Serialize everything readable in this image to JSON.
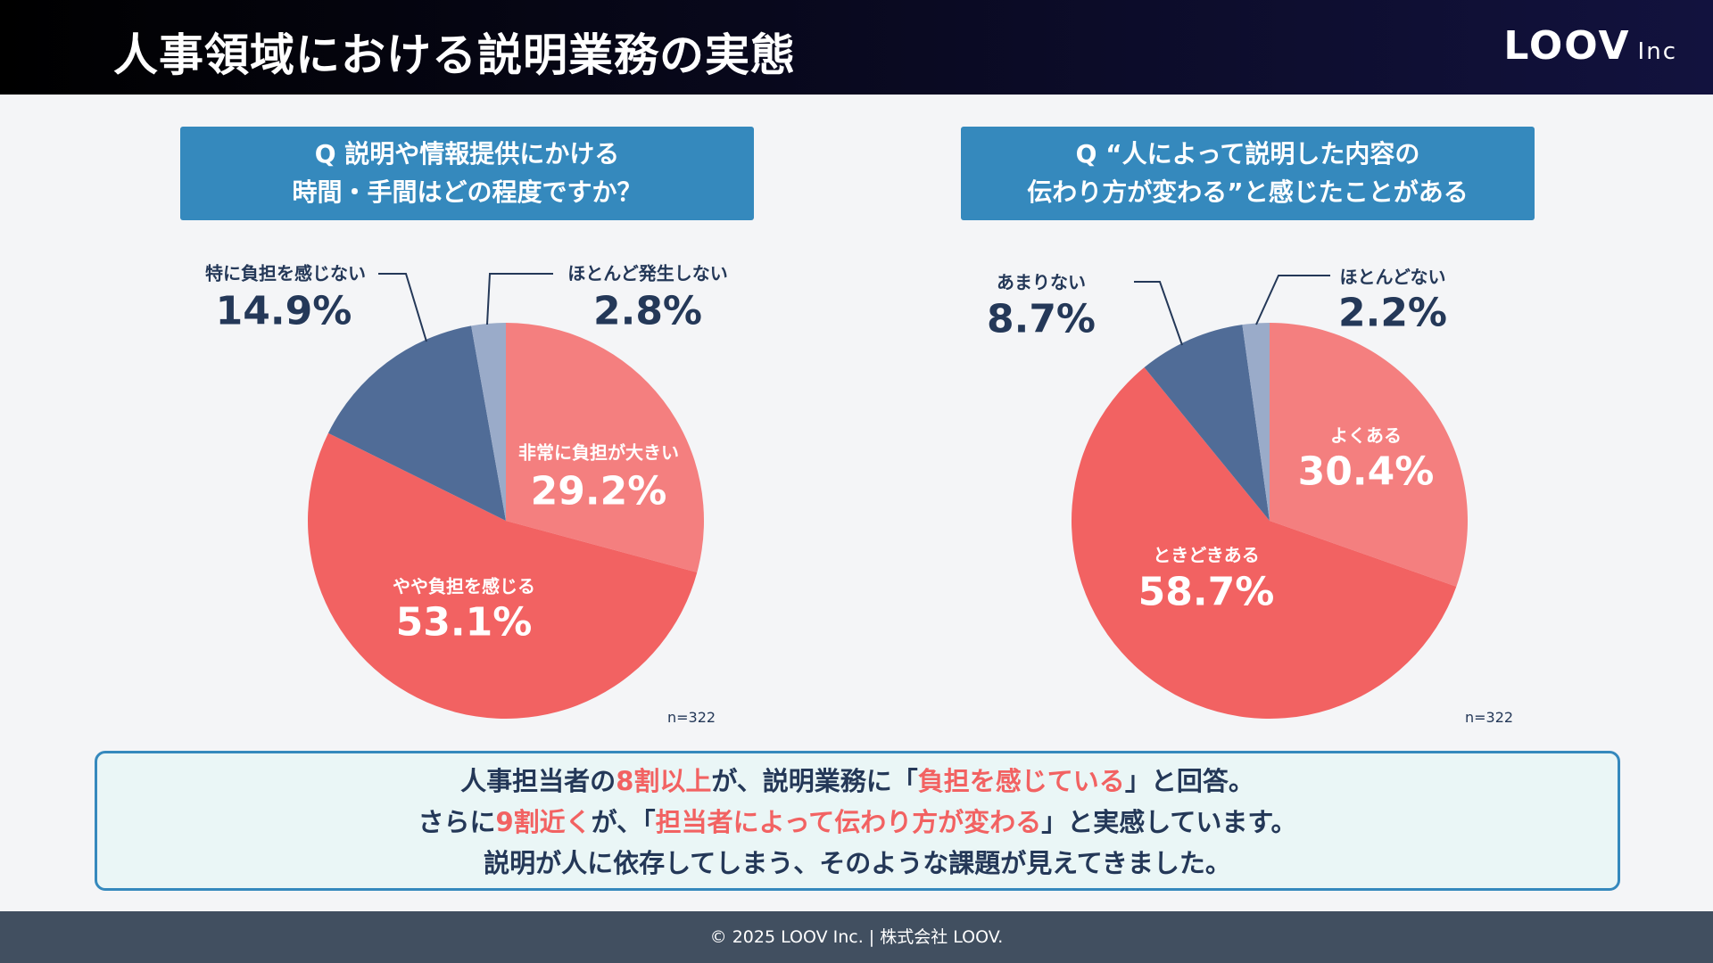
{
  "header": {
    "title": "人事領域における説明業務の実態",
    "logo_main": "LOOV",
    "logo_sub": "Inc"
  },
  "colors": {
    "header": "#0b0b26",
    "question_box": "#3589bd",
    "strong_burden": "#f47f7f",
    "some_burden": "#f26262",
    "no_burden": "#506c97",
    "rare": "#9aabc9",
    "highlight": "#f26262",
    "footer": "#414f60"
  },
  "chart_data": [
    {
      "type": "pie",
      "title_lines": [
        "Q 説明や情報提供にかける",
        "時間・手間はどの程度ですか？"
      ],
      "note": "n=322",
      "slices": [
        {
          "label": "非常に負担が大きい",
          "value": 29.2,
          "display": "29.2%",
          "color": "#f47f7f"
        },
        {
          "label": "やや負担を感じる",
          "value": 53.1,
          "display": "53.1%",
          "color": "#f26262"
        },
        {
          "label": "特に負担を感じない",
          "value": 14.9,
          "display": "14.9%",
          "color": "#506c97"
        },
        {
          "label": "ほとんど発生しない",
          "value": 2.8,
          "display": "2.8%",
          "color": "#9aabc9"
        }
      ]
    },
    {
      "type": "pie",
      "title_lines": [
        "Q “人によって説明した内容の",
        "伝わり方が変わる”と感じたことがある"
      ],
      "note": "n=322",
      "slices": [
        {
          "label": "よくある",
          "value": 30.4,
          "display": "30.4%",
          "color": "#f47f7f"
        },
        {
          "label": "ときどきある",
          "value": 58.7,
          "display": "58.7%",
          "color": "#f26262"
        },
        {
          "label": "あまりない",
          "value": 8.7,
          "display": "8.7%",
          "color": "#506c97"
        },
        {
          "label": "ほとんどない",
          "value": 2.2,
          "display": "2.2%",
          "color": "#9aabc9"
        }
      ]
    }
  ],
  "summary": {
    "line1": [
      "人事担当者の",
      "8割以上",
      "が、説明業務に「",
      "負担を感じている",
      "」と回答。"
    ],
    "line2": [
      "さらに",
      "9割近く",
      "が、「",
      "担当者によって伝わり方が変わる",
      "」と実感しています。"
    ],
    "line3": "説明が人に依存してしまう、そのような課題が見えてきました。"
  },
  "footer": {
    "text": "© 2025 LOOV Inc. | 株式会社 LOOV."
  }
}
